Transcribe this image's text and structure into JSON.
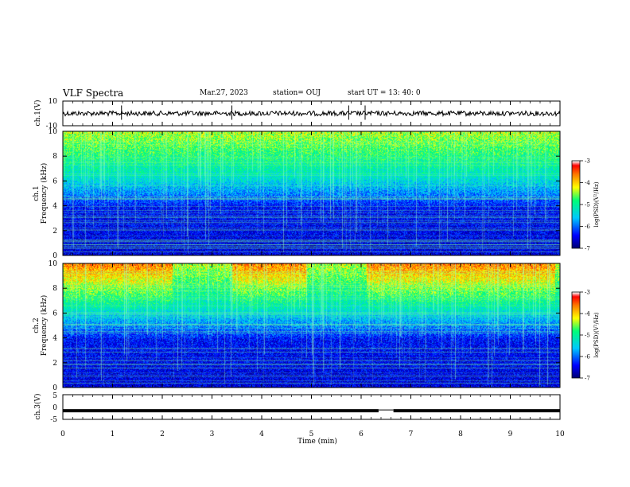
{
  "header": {
    "title": "VLF Spectra",
    "date": "Mar.27, 2023",
    "station": "station= OUJ",
    "start_ut": "start  UT  =   13: 40: 0"
  },
  "chart_data": [
    {
      "type": "line",
      "panel": "ch1-waveform",
      "ylabel": "ch.1(V)",
      "ylim": [
        -10,
        10
      ],
      "yticks": [
        "10",
        "-10"
      ],
      "xlim": [
        0,
        10
      ],
      "baseline": 0
    },
    {
      "type": "heatmap",
      "panel": "ch1-spectrogram",
      "ylabel": "ch.1\nFrequency (kHz)",
      "ylim": [
        0,
        10
      ],
      "yticks": [
        "0",
        "2",
        "4",
        "6",
        "8",
        "10"
      ],
      "xlim": [
        0,
        10
      ],
      "colorbar": {
        "label": "log(PSD)(V²/Hz)",
        "range": [
          -7,
          -3
        ],
        "ticks": [
          "-3",
          "-4",
          "-5",
          "-6",
          "-7"
        ]
      }
    },
    {
      "type": "heatmap",
      "panel": "ch2-spectrogram",
      "ylabel": "ch.2\nFrequency (kHz)",
      "ylim": [
        0,
        10
      ],
      "yticks": [
        "0",
        "2",
        "4",
        "6",
        "8",
        "10"
      ],
      "xlim": [
        0,
        10
      ],
      "colorbar": {
        "label": "log(PSD)(V²/Hz)",
        "range": [
          -7,
          -3
        ],
        "ticks": [
          "-3",
          "-4",
          "-5",
          "-6",
          "-7"
        ]
      }
    },
    {
      "type": "line",
      "panel": "ch3-signal",
      "ylabel": "ch.3(V)",
      "ylim": [
        -5,
        5
      ],
      "yticks": [
        "5",
        "0",
        "-5"
      ],
      "xlim": [
        0,
        10
      ],
      "level": -1.5,
      "gap": [
        6.35,
        6.65
      ]
    }
  ],
  "xaxis": {
    "label": "Time (min)",
    "ticks": [
      "0",
      "1",
      "2",
      "3",
      "4",
      "5",
      "6",
      "7",
      "8",
      "9",
      "10"
    ]
  },
  "colors": {
    "axis": "#000000",
    "colormap": [
      "#000070",
      "#0000ff",
      "#00c8ff",
      "#00ff80",
      "#ffff00",
      "#ff8000",
      "#ff0000",
      "#ffffff"
    ]
  }
}
